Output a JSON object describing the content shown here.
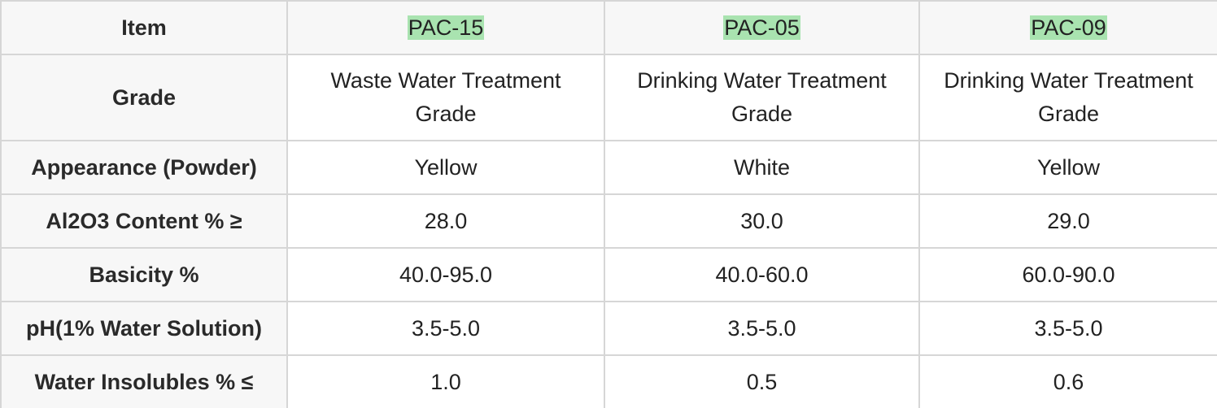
{
  "header": {
    "item_label": "Item",
    "products": [
      "PAC-15",
      "PAC-05",
      "PAC-09"
    ],
    "highlight_color": "#a9e3b0"
  },
  "rows": [
    {
      "label": "Grade",
      "values": [
        "Waste Water Treatment Grade",
        "Drinking Water Treatment Grade",
        "Drinking Water Treatment Grade"
      ]
    },
    {
      "label": "Appearance (Powder)",
      "values": [
        "Yellow",
        "White",
        "Yellow"
      ]
    },
    {
      "label": "Al2O3 Content % ≥",
      "values": [
        "28.0",
        "30.0",
        "29.0"
      ]
    },
    {
      "label": "Basicity %",
      "values": [
        "40.0-95.0",
        "40.0-60.0",
        "60.0-90.0"
      ]
    },
    {
      "label": "pH(1% Water Solution)",
      "values": [
        "3.5-5.0",
        "3.5-5.0",
        "3.5-5.0"
      ]
    },
    {
      "label": "Water Insolubles % ≤",
      "values": [
        "1.0",
        "0.5",
        "0.6"
      ]
    }
  ]
}
